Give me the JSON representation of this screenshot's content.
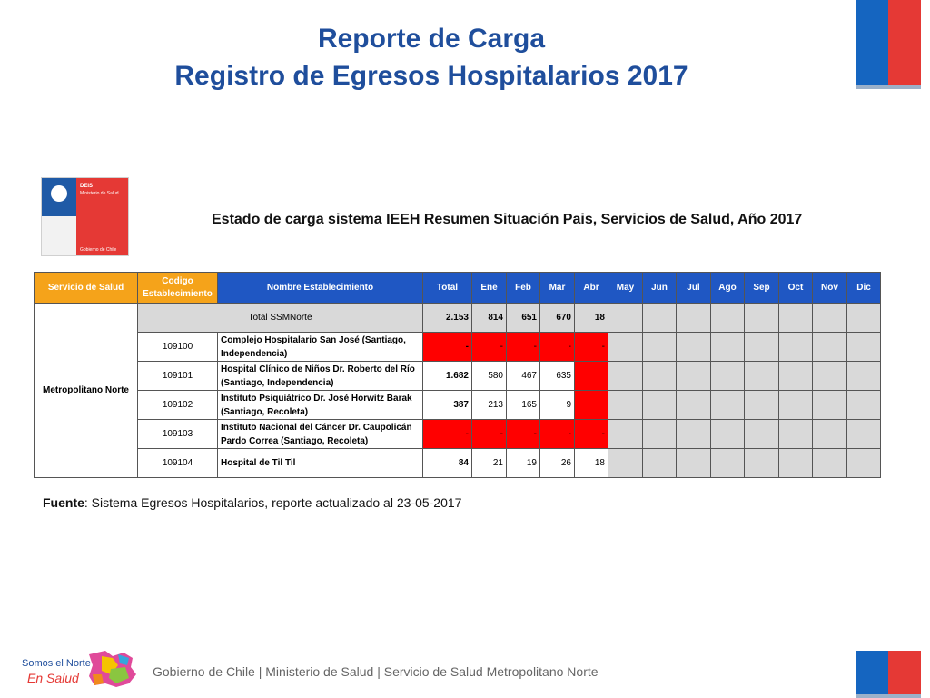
{
  "header": {
    "title_line1": "Reporte de Carga",
    "title_line2": "Registro de Egresos Hospitalarios 2017"
  },
  "logo": {
    "unit": "DEIS",
    "ministry": "Ministerio de Salud",
    "government": "Gobierno de Chile"
  },
  "colors": {
    "title_blue": "#1f4e9c",
    "header_blue": "#1f57c3",
    "header_orange": "#f5a31a",
    "alert_red": "#ff0000",
    "cell_gray": "#d9d9d9",
    "flag_blue": "#1565c0",
    "flag_red": "#e53935"
  },
  "report": {
    "subtitle": "Estado de carga sistema IEEH Resumen Situación Pais, Servicios de Salud, Año 2017",
    "headers": {
      "service": "Servicio de Salud",
      "code": "Codigo Establecimiento",
      "name": "Nombre Establecimiento",
      "total": "Total",
      "months": [
        "Ene",
        "Feb",
        "Mar",
        "Abr",
        "May",
        "Jun",
        "Jul",
        "Ago",
        "Sep",
        "Oct",
        "Nov",
        "Dic"
      ]
    },
    "service_name": "Metropolitano Norte",
    "summary": {
      "label": "Total SSMNorte",
      "total": "2.153",
      "months": [
        "814",
        "651",
        "670",
        "18",
        "",
        "",
        "",
        "",
        "",
        "",
        "",
        ""
      ]
    },
    "rows": [
      {
        "code": "109100",
        "name": "Complejo Hospitalario San José (Santiago, Independencia)",
        "total": "-",
        "months": [
          "-",
          "-",
          "-",
          "-",
          "",
          "",
          "",
          "",
          "",
          "",
          "",
          ""
        ],
        "status": [
          "red",
          "red",
          "red",
          "red",
          "red",
          "gray",
          "gray",
          "gray",
          "gray",
          "gray",
          "gray",
          "gray",
          "gray"
        ]
      },
      {
        "code": "109101",
        "name": "Hospital Clínico de Niños Dr. Roberto del Río (Santiago, Independencia)",
        "total": "1.682",
        "months": [
          "580",
          "467",
          "635",
          "",
          "",
          "",
          "",
          "",
          "",
          "",
          "",
          ""
        ],
        "status": [
          "white",
          "white",
          "white",
          "white",
          "red",
          "gray",
          "gray",
          "gray",
          "gray",
          "gray",
          "gray",
          "gray",
          "gray"
        ]
      },
      {
        "code": "109102",
        "name": "Instituto Psiquiátrico Dr. José Horwitz Barak (Santiago, Recoleta)",
        "total": "387",
        "months": [
          "213",
          "165",
          "9",
          "",
          "",
          "",
          "",
          "",
          "",
          "",
          "",
          ""
        ],
        "status": [
          "white",
          "white",
          "white",
          "white",
          "red",
          "gray",
          "gray",
          "gray",
          "gray",
          "gray",
          "gray",
          "gray",
          "gray"
        ]
      },
      {
        "code": "109103",
        "name": "Instituto Nacional del Cáncer Dr. Caupolicán Pardo Correa (Santiago, Recoleta)",
        "total": "-",
        "months": [
          "-",
          "-",
          "-",
          "-",
          "",
          "",
          "",
          "",
          "",
          "",
          "",
          ""
        ],
        "status": [
          "red",
          "red",
          "red",
          "red",
          "red",
          "gray",
          "gray",
          "gray",
          "gray",
          "gray",
          "gray",
          "gray",
          "gray"
        ]
      },
      {
        "code": "109104",
        "name": "Hospital de Til Til",
        "total": "84",
        "months": [
          "21",
          "19",
          "26",
          "18",
          "",
          "",
          "",
          "",
          "",
          "",
          "",
          ""
        ],
        "status": [
          "white",
          "white",
          "white",
          "white",
          "white",
          "gray",
          "gray",
          "gray",
          "gray",
          "gray",
          "gray",
          "gray",
          "gray"
        ]
      }
    ],
    "source_label": "Fuente",
    "source_text": ": Sistema Egresos Hospitalarios, reporte actualizado al 23-05-2017"
  },
  "footer": {
    "brand_line1": "Somos el Norte",
    "brand_line2": "En Salud",
    "text": "Gobierno de Chile | Ministerio de Salud | Servicio de Salud Metropolitano Norte"
  }
}
